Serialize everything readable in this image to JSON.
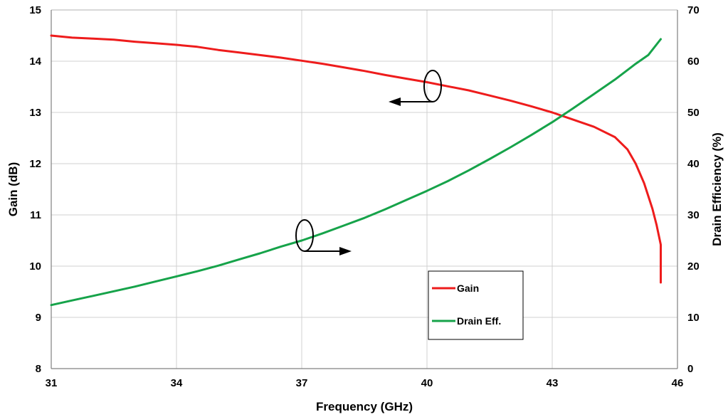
{
  "chart_data": {
    "type": "line",
    "title": "",
    "xlabel": "Frequency (GHz)",
    "ylabel": "Gain (dB)",
    "y2label": "Drain Efficiency (%)",
    "xlim": [
      31,
      46
    ],
    "ylim": [
      8,
      15
    ],
    "y2lim": [
      0,
      70
    ],
    "xticks": [
      "31",
      "34",
      "37",
      "40",
      "43",
      "46"
    ],
    "yticks": [
      "8",
      "9",
      "10",
      "11",
      "12",
      "13",
      "14",
      "15"
    ],
    "y2ticks": [
      "0",
      "10",
      "20",
      "30",
      "40",
      "50",
      "60",
      "70"
    ],
    "grid": true,
    "legend_position": "center-right",
    "series": [
      {
        "name": "Gain",
        "axis": "left",
        "color": "#ee1c1c",
        "x": [
          31,
          31.5,
          32,
          32.5,
          33,
          33.5,
          34,
          34.5,
          35,
          35.5,
          36,
          36.5,
          37,
          37.5,
          38,
          38.5,
          39,
          39.5,
          40,
          40.5,
          41,
          41.5,
          42,
          42.5,
          43,
          43.5,
          44,
          44.5,
          44.8,
          45,
          45.2,
          45.4,
          45.5,
          45.6,
          45.6
        ],
        "y": [
          14.5,
          14.46,
          14.44,
          14.42,
          14.38,
          14.35,
          14.32,
          14.28,
          14.22,
          14.17,
          14.12,
          14.07,
          14.01,
          13.95,
          13.88,
          13.81,
          13.73,
          13.66,
          13.59,
          13.51,
          13.43,
          13.33,
          13.23,
          13.12,
          13.0,
          12.86,
          12.72,
          12.52,
          12.28,
          12.0,
          11.62,
          11.12,
          10.8,
          10.42,
          9.68
        ]
      },
      {
        "name": "Drain Eff.",
        "axis": "right",
        "color": "#16a34a",
        "x": [
          31,
          31.5,
          32,
          32.5,
          33,
          33.5,
          34,
          34.5,
          35,
          35.5,
          36,
          36.5,
          37,
          37.5,
          38,
          38.5,
          39,
          39.5,
          40,
          40.5,
          41,
          41.5,
          42,
          42.5,
          43,
          43.5,
          44,
          44.5,
          45,
          45.3,
          45.6
        ],
        "y": [
          12.4,
          13.3,
          14.2,
          15.1,
          16.0,
          17.0,
          18.0,
          19.0,
          20.1,
          21.3,
          22.5,
          23.8,
          25.0,
          26.4,
          27.9,
          29.4,
          31.1,
          32.9,
          34.7,
          36.6,
          38.7,
          40.9,
          43.2,
          45.6,
          48.1,
          50.8,
          53.6,
          56.4,
          59.5,
          61.2,
          64.3
        ]
      }
    ]
  }
}
